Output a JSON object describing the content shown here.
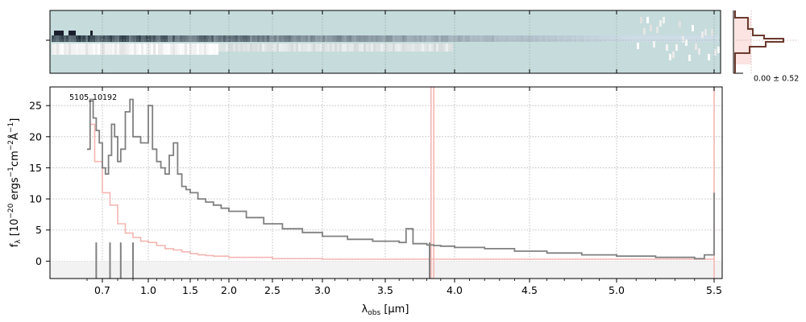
{
  "chart_data": [
    {
      "type": "heatmap",
      "panel": "2d-spectrum",
      "description_colormap": "bone (dark = high flux)",
      "background_color": "#c6dcdc",
      "trace_row": "center",
      "x_ticks": [
        0.7,
        1.0,
        1.5,
        2.0,
        2.5,
        3.0,
        3.5,
        4.0,
        4.5,
        5.0,
        5.5
      ],
      "grid": true
    },
    {
      "type": "line",
      "panel": "1d-spectrum",
      "object_label": "5105_10192",
      "xlabel": "λ_obs [μm]",
      "ylabel": "f_λ [10^−20 ergs⁻¹cm⁻²Å⁻¹]",
      "ylim": [
        -2.8,
        28
      ],
      "yticks": [
        0,
        5,
        10,
        15,
        20,
        25
      ],
      "x_ticks": [
        0.7,
        1.0,
        1.5,
        2.0,
        2.5,
        3.0,
        3.5,
        4.0,
        4.5,
        5.0,
        5.5
      ],
      "x_tick_labels": [
        "0.7",
        "1.0",
        "1.5",
        "2.0",
        "2.5",
        "3.0",
        "3.5",
        "4.0",
        "4.5",
        "5.0",
        "5.5"
      ],
      "grid": true,
      "series": [
        {
          "role": "flux",
          "color": "#808080",
          "x": [
            0.6,
            0.62,
            0.64,
            0.66,
            0.68,
            0.7,
            0.72,
            0.74,
            0.76,
            0.78,
            0.8,
            0.82,
            0.85,
            0.88,
            0.9,
            0.95,
            1.0,
            1.05,
            1.1,
            1.15,
            1.2,
            1.25,
            1.3,
            1.35,
            1.4,
            1.45,
            1.5,
            1.6,
            1.7,
            1.8,
            1.9,
            2.0,
            2.2,
            2.4,
            2.6,
            2.8,
            3.0,
            3.2,
            3.4,
            3.6,
            3.65,
            3.7,
            3.8,
            3.85,
            3.9,
            4.0,
            4.2,
            4.4,
            4.6,
            4.8,
            5.0,
            5.2,
            5.4,
            5.45,
            5.5
          ],
          "y": [
            18,
            26,
            23,
            21,
            19,
            15,
            14,
            17,
            22,
            20,
            16,
            18,
            24,
            26,
            20,
            19,
            25,
            18,
            16,
            15,
            14,
            17,
            19,
            14,
            12,
            11.5,
            11,
            10,
            9.5,
            9,
            8.5,
            8,
            7,
            6,
            5.2,
            4.6,
            4,
            3.5,
            3.2,
            3,
            5.2,
            2.8,
            2.6,
            2.5,
            2.4,
            2.2,
            2.0,
            1.6,
            1.3,
            1.0,
            0.8,
            0.6,
            0.4,
            1.0,
            11
          ]
        },
        {
          "role": "uncertainty",
          "color": "#f4b6b2",
          "x": [
            0.6,
            0.62,
            0.65,
            0.7,
            0.75,
            0.8,
            0.85,
            0.9,
            0.95,
            1.0,
            1.1,
            1.2,
            1.3,
            1.4,
            1.5,
            1.6,
            1.7,
            1.8,
            2.0,
            2.5,
            3.0,
            3.5,
            4.0,
            4.5,
            5.0,
            5.5
          ],
          "y": [
            18,
            22,
            16,
            11,
            9,
            6,
            4.5,
            3.8,
            3.2,
            3.0,
            2.5,
            2.0,
            1.8,
            1.5,
            1.2,
            1.0,
            0.9,
            0.8,
            0.6,
            0.4,
            0.3,
            0.3,
            0.3,
            0.3,
            0.3,
            0.4
          ]
        }
      ]
    },
    {
      "type": "line",
      "panel": "cross-dispersion-profile",
      "annotation": "0.00 ± 0.52",
      "colors": [
        "#6b3a2e",
        "#f4b6b2"
      ]
    }
  ]
}
